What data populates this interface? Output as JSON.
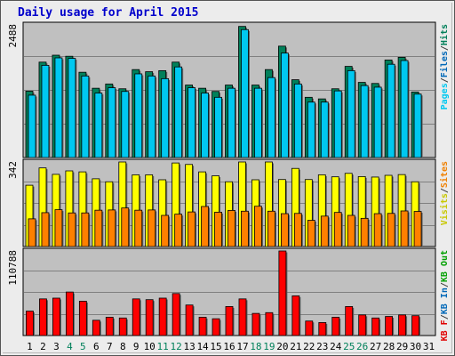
{
  "chart_data": {
    "type": "bar",
    "title": "Daily usage for April 2015",
    "x": [
      "1",
      "2",
      "3",
      "4",
      "5",
      "6",
      "7",
      "8",
      "9",
      "10",
      "11",
      "12",
      "13",
      "14",
      "15",
      "16",
      "17",
      "18",
      "19",
      "20",
      "21",
      "22",
      "23",
      "24",
      "25",
      "26",
      "27",
      "28",
      "29",
      "30",
      "31"
    ],
    "weekend_days": [
      "4",
      "5",
      "11",
      "12",
      "18",
      "19",
      "25",
      "26"
    ],
    "panels": [
      {
        "name": "pages-files-hits",
        "max_label": "2488",
        "max": 2488,
        "legend": [
          "Pages",
          "/",
          "Files",
          "/",
          "Hits"
        ],
        "legend_colors": [
          "#00c8f0",
          "#404040",
          "#0068b8",
          "#404040",
          "#00805a"
        ],
        "series": [
          {
            "name": "Hits",
            "color": "#00805a",
            "values": [
              1245,
              1790,
              1920,
              1900,
              1600,
              1300,
              1380,
              1290,
              1650,
              1610,
              1630,
              1790,
              1360,
              1300,
              1240,
              1360,
              2460,
              1360,
              1650,
              2090,
              1460,
              1130,
              1100,
              1290,
              1710,
              1410,
              1390,
              1830,
              1880,
              1230,
              0
            ]
          },
          {
            "name": "Pages",
            "color": "#00c8f0",
            "values": [
              1170,
              1730,
              1870,
              1860,
              1530,
              1210,
              1310,
              1240,
              1570,
              1530,
              1480,
              1700,
              1310,
              1210,
              1130,
              1300,
              2400,
              1300,
              1500,
              1960,
              1380,
              1040,
              1040,
              1250,
              1630,
              1350,
              1320,
              1750,
              1820,
              1190,
              0
            ]
          }
        ]
      },
      {
        "name": "visits-sites",
        "max_label": "342",
        "max": 342,
        "legend": [
          "Visits",
          "/",
          "Sites"
        ],
        "legend_colors": [
          "#c8c800",
          "#404040",
          "#f08000"
        ],
        "series": [
          {
            "name": "Visits",
            "color": "#ffff00",
            "values": [
              248,
              318,
              292,
              306,
              302,
              274,
              262,
              342,
              290,
              290,
              270,
              338,
              332,
              302,
              286,
              262,
              342,
              270,
              342,
              271,
              316,
              271,
              290,
              282,
              296,
              283,
              281,
              288,
              291,
              262,
              0
            ]
          },
          {
            "name": "Sites",
            "color": "#ff8000",
            "values": [
              112,
              137,
              149,
              136,
              136,
              147,
              148,
              156,
              147,
              148,
              126,
              131,
              140,
              162,
              139,
              146,
              143,
              163,
              143,
              133,
              134,
              106,
              123,
              138,
              126,
              114,
              133,
              134,
              144,
              142,
              0
            ]
          }
        ]
      },
      {
        "name": "kbytes",
        "max_label": "110788",
        "max": 110788,
        "legend": [
          "KB F",
          "/",
          "KB In",
          "/",
          "KB Out"
        ],
        "legend_colors": [
          "#e00000",
          "#404040",
          "#0068b8",
          "#404040",
          "#00a000"
        ],
        "series": [
          {
            "name": "KB F",
            "color": "#ff0000",
            "values": [
              32000,
              48000,
              49000,
              57000,
              45000,
              20000,
              24000,
              23000,
              48000,
              47000,
              49000,
              55000,
              40000,
              24000,
              22000,
              38000,
              48000,
              29000,
              30000,
              110788,
              52000,
              19000,
              17000,
              24000,
              38000,
              27000,
              23000,
              25000,
              27000,
              26000,
              0
            ]
          }
        ]
      }
    ]
  }
}
